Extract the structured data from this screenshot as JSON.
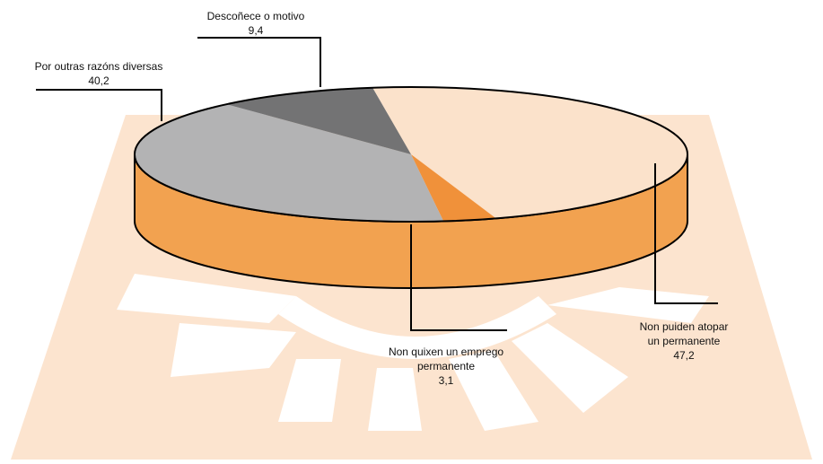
{
  "chart_data": {
    "type": "pie",
    "categories": [
      "Non puiden atopar un permanente",
      "Non quixen un emprego permanente",
      "Por outras razóns diversas",
      "Descoñece o motivo"
    ],
    "values": [
      47.2,
      3.1,
      40.2,
      9.4
    ],
    "value_labels": [
      "47,2",
      "3,1",
      "40,2",
      "9,4"
    ],
    "colors": [
      "#fbe2cb",
      "#f0913a",
      "#b3b3b4",
      "#737374"
    ]
  }
}
